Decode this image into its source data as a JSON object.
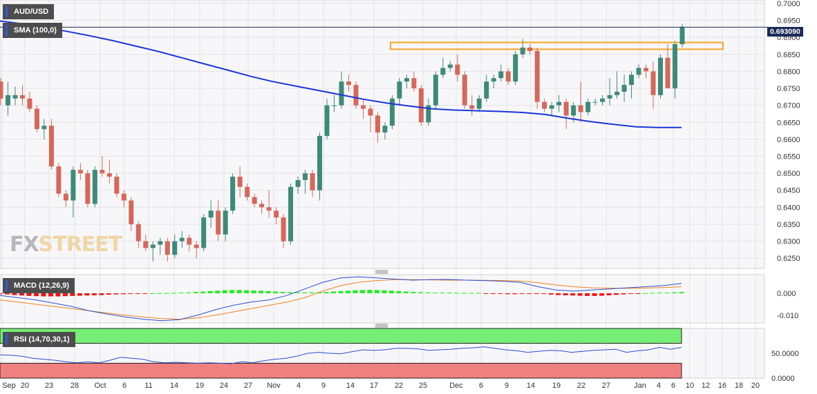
{
  "labels": {
    "symbol": "AUD/USD",
    "sma": "SMA (100,0)",
    "macd": "MACD (12,26,9)",
    "rsi": "RSI (14,70,30,1)",
    "price_tag": "0.693090",
    "watermark_fx": "FX",
    "watermark_street": "STREET"
  },
  "colors": {
    "bull": "#3d8a7a",
    "bear": "#d6675a",
    "sma": "#1a35d6",
    "macd_line": "#2d4ed1",
    "signal_line": "#f0801a",
    "hist_pos": "#22ee22",
    "hist_neg": "#ee1111",
    "rsi_line": "#2b4bd3",
    "rsi_overbought": "#77ee77",
    "rsi_oversold": "#f08080",
    "resistance_zone": "#f5a623",
    "price_line": "#1c2a57"
  },
  "chart_data": {
    "type": "candlestick",
    "price_axis": {
      "ticks": [
        "0.7000",
        "0.6950",
        "0.6900",
        "0.6850",
        "0.6800",
        "0.6750",
        "0.6700",
        "0.6650",
        "0.6600",
        "0.6550",
        "0.6500",
        "0.6450",
        "0.6400",
        "0.6350",
        "0.6300",
        "0.6250"
      ],
      "range": [
        0.622,
        0.701
      ]
    },
    "x_tick_labels": [
      "Sep",
      "20",
      "23",
      "28",
      "Oct",
      "6",
      "11",
      "14",
      "19",
      "24",
      "27",
      "Nov",
      "4",
      "9",
      "14",
      "17",
      "22",
      "25",
      "Dec",
      "6",
      "9",
      "14",
      "19",
      "22",
      "27",
      "Jan",
      "4",
      "6",
      "10",
      "12",
      "16",
      "18",
      "20"
    ],
    "ohlc": [
      [
        0.677,
        0.678,
        0.67,
        0.672
      ],
      [
        0.67,
        0.677,
        0.667,
        0.673
      ],
      [
        0.672,
        0.6755,
        0.67,
        0.673
      ],
      [
        0.673,
        0.676,
        0.67,
        0.672
      ],
      [
        0.672,
        0.674,
        0.668,
        0.669
      ],
      [
        0.669,
        0.67,
        0.662,
        0.663
      ],
      [
        0.663,
        0.666,
        0.66,
        0.664
      ],
      [
        0.664,
        0.666,
        0.651,
        0.652
      ],
      [
        0.652,
        0.653,
        0.643,
        0.644
      ],
      [
        0.644,
        0.645,
        0.64,
        0.642
      ],
      [
        0.642,
        0.652,
        0.637,
        0.651
      ],
      [
        0.651,
        0.653,
        0.648,
        0.65
      ],
      [
        0.65,
        0.651,
        0.64,
        0.641
      ],
      [
        0.641,
        0.652,
        0.64,
        0.651
      ],
      [
        0.651,
        0.655,
        0.649,
        0.65
      ],
      [
        0.65,
        0.654,
        0.647,
        0.649
      ],
      [
        0.649,
        0.65,
        0.643,
        0.644
      ],
      [
        0.644,
        0.645,
        0.64,
        0.642
      ],
      [
        0.642,
        0.643,
        0.633,
        0.635
      ],
      [
        0.635,
        0.636,
        0.628,
        0.63
      ],
      [
        0.63,
        0.632,
        0.627,
        0.628
      ],
      [
        0.628,
        0.63,
        0.624,
        0.629
      ],
      [
        0.629,
        0.631,
        0.626,
        0.63
      ],
      [
        0.63,
        0.631,
        0.624,
        0.626
      ],
      [
        0.626,
        0.632,
        0.625,
        0.63
      ],
      [
        0.63,
        0.633,
        0.628,
        0.631
      ],
      [
        0.631,
        0.632,
        0.627,
        0.629
      ],
      [
        0.629,
        0.63,
        0.625,
        0.628
      ],
      [
        0.628,
        0.638,
        0.627,
        0.637
      ],
      [
        0.637,
        0.642,
        0.634,
        0.639
      ],
      [
        0.639,
        0.642,
        0.63,
        0.632
      ],
      [
        0.632,
        0.64,
        0.63,
        0.639
      ],
      [
        0.639,
        0.65,
        0.638,
        0.649
      ],
      [
        0.649,
        0.652,
        0.643,
        0.646
      ],
      [
        0.646,
        0.647,
        0.642,
        0.643
      ],
      [
        0.643,
        0.644,
        0.64,
        0.641
      ],
      [
        0.641,
        0.642,
        0.638,
        0.64
      ],
      [
        0.64,
        0.645,
        0.637,
        0.639
      ],
      [
        0.639,
        0.64,
        0.635,
        0.637
      ],
      [
        0.637,
        0.638,
        0.628,
        0.63
      ],
      [
        0.63,
        0.647,
        0.629,
        0.646
      ],
      [
        0.646,
        0.649,
        0.644,
        0.648
      ],
      [
        0.648,
        0.651,
        0.644,
        0.65
      ],
      [
        0.65,
        0.651,
        0.643,
        0.645
      ],
      [
        0.645,
        0.662,
        0.642,
        0.661
      ],
      [
        0.661,
        0.672,
        0.66,
        0.67
      ],
      [
        0.67,
        0.673,
        0.668,
        0.67
      ],
      [
        0.67,
        0.68,
        0.669,
        0.677
      ],
      [
        0.677,
        0.679,
        0.674,
        0.676
      ],
      [
        0.676,
        0.677,
        0.669,
        0.67
      ],
      [
        0.67,
        0.672,
        0.666,
        0.669
      ],
      [
        0.669,
        0.67,
        0.662,
        0.667
      ],
      [
        0.667,
        0.668,
        0.659,
        0.662
      ],
      [
        0.662,
        0.665,
        0.66,
        0.664
      ],
      [
        0.664,
        0.673,
        0.663,
        0.672
      ],
      [
        0.672,
        0.678,
        0.67,
        0.677
      ],
      [
        0.677,
        0.679,
        0.675,
        0.678
      ],
      [
        0.678,
        0.68,
        0.674,
        0.675
      ],
      [
        0.675,
        0.676,
        0.664,
        0.665
      ],
      [
        0.665,
        0.672,
        0.664,
        0.67
      ],
      [
        0.67,
        0.68,
        0.669,
        0.679
      ],
      [
        0.679,
        0.684,
        0.678,
        0.681
      ],
      [
        0.681,
        0.683,
        0.68,
        0.682
      ],
      [
        0.682,
        0.685,
        0.677,
        0.679
      ],
      [
        0.679,
        0.68,
        0.669,
        0.67
      ],
      [
        0.67,
        0.673,
        0.667,
        0.669
      ],
      [
        0.669,
        0.673,
        0.668,
        0.672
      ],
      [
        0.672,
        0.679,
        0.671,
        0.677
      ],
      [
        0.677,
        0.679,
        0.675,
        0.678
      ],
      [
        0.678,
        0.682,
        0.677,
        0.68
      ],
      [
        0.68,
        0.681,
        0.676,
        0.677
      ],
      [
        0.677,
        0.686,
        0.676,
        0.685
      ],
      [
        0.685,
        0.6895,
        0.684,
        0.687
      ],
      [
        0.687,
        0.688,
        0.685,
        0.686
      ],
      [
        0.686,
        0.687,
        0.669,
        0.671
      ],
      [
        0.671,
        0.672,
        0.668,
        0.669
      ],
      [
        0.669,
        0.671,
        0.667,
        0.67
      ],
      [
        0.67,
        0.673,
        0.668,
        0.671
      ],
      [
        0.671,
        0.672,
        0.663,
        0.667
      ],
      [
        0.667,
        0.671,
        0.665,
        0.67
      ],
      [
        0.67,
        0.677,
        0.665,
        0.668
      ],
      [
        0.668,
        0.672,
        0.667,
        0.671
      ],
      [
        0.671,
        0.672,
        0.67,
        0.671
      ],
      [
        0.671,
        0.673,
        0.67,
        0.672
      ],
      [
        0.672,
        0.678,
        0.67,
        0.673
      ],
      [
        0.673,
        0.68,
        0.672,
        0.674
      ],
      [
        0.674,
        0.679,
        0.671,
        0.676
      ],
      [
        0.676,
        0.68,
        0.672,
        0.679
      ],
      [
        0.679,
        0.682,
        0.678,
        0.681
      ],
      [
        0.681,
        0.682,
        0.678,
        0.68
      ],
      [
        0.68,
        0.683,
        0.669,
        0.673
      ],
      [
        0.673,
        0.685,
        0.672,
        0.684
      ],
      [
        0.684,
        0.688,
        0.675,
        0.675
      ],
      [
        0.675,
        0.689,
        0.672,
        0.688
      ],
      [
        0.688,
        0.694,
        0.687,
        0.693
      ]
    ],
    "sma_100": [
      0.6948,
      0.694,
      0.6929,
      0.6917,
      0.6904,
      0.689,
      0.6874,
      0.6858,
      0.684,
      0.6822,
      0.6804,
      0.6786,
      0.677,
      0.6757,
      0.6744,
      0.6731,
      0.6718,
      0.6707,
      0.6698,
      0.669,
      0.6686,
      0.6684,
      0.6682,
      0.6679,
      0.6673,
      0.6662,
      0.6652,
      0.6644,
      0.6637,
      0.6635,
      0.6635
    ],
    "resistance_zone": [
      0.6865,
      0.6885
    ],
    "macd_axis": {
      "ticks": [
        "0.000",
        "-0.010"
      ],
      "range": [
        -0.0135,
        0.0085
      ]
    },
    "macd_line": [
      -0.001,
      -0.002,
      -0.003,
      -0.0045,
      -0.006,
      -0.008,
      -0.0095,
      -0.0108,
      -0.0118,
      -0.0125,
      -0.012,
      -0.01,
      -0.0075,
      -0.0055,
      -0.004,
      -0.003,
      -0.001,
      0.002,
      0.005,
      0.007,
      0.0075,
      0.007,
      0.0065,
      0.006,
      0.0062,
      0.0063,
      0.006,
      0.0058,
      0.0055,
      0.005,
      0.003,
      0.0015,
      0.001,
      0.0015,
      0.002,
      0.0025,
      0.003,
      0.0035,
      0.0045
    ],
    "signal_line": [
      -0.003,
      -0.004,
      -0.005,
      -0.006,
      -0.007,
      -0.008,
      -0.009,
      -0.01,
      -0.0108,
      -0.0115,
      -0.0118,
      -0.0112,
      -0.01,
      -0.0085,
      -0.007,
      -0.0055,
      -0.004,
      -0.002,
      0.001,
      0.0035,
      0.005,
      0.0058,
      0.0062,
      0.0062,
      0.0061,
      0.006,
      0.006,
      0.0059,
      0.0058,
      0.0056,
      0.0048,
      0.0038,
      0.003,
      0.0025,
      0.0023,
      0.0023,
      0.0024,
      0.0026,
      0.003
    ],
    "macd_hist": [
      -0.0004,
      -0.0005,
      -0.0008,
      -0.001,
      -0.0012,
      -0.0013,
      -0.0014,
      -0.0014,
      -0.0014,
      -0.0013,
      -0.0012,
      -0.0011,
      -0.001,
      -0.0009,
      -0.0008,
      -0.0006,
      -0.0005,
      -0.0004,
      -0.0003,
      -0.0002,
      -0.0001,
      0.0,
      0.0001,
      0.0001,
      0.0002,
      0.0003,
      0.0004,
      0.0006,
      0.0008,
      0.001,
      0.0012,
      0.0014,
      0.0015,
      0.0015,
      0.0014,
      0.0013,
      0.0012,
      0.001,
      0.0008,
      0.0006,
      0.0005,
      0.0004,
      0.0004,
      0.0004,
      0.0005,
      0.0006,
      0.0008,
      0.001,
      0.0012,
      0.0014,
      0.0015,
      0.0016,
      0.0015,
      0.0014,
      0.0012,
      0.001,
      0.0008,
      0.0006,
      0.0005,
      0.0004,
      0.0003,
      0.0003,
      0.0003,
      0.0002,
      0.0002,
      0.0002,
      0.0002,
      -0.0001,
      -0.0002,
      -0.0003,
      -0.0004,
      -0.0004,
      -0.0003,
      -0.0003,
      -0.0003,
      -0.0002,
      -0.0006,
      -0.0008,
      -0.0009,
      -0.001,
      -0.0011,
      -0.0012,
      -0.0012,
      -0.0011,
      -0.0009,
      -0.0007,
      -0.0005,
      -0.0003,
      -0.0001,
      0.0001,
      0.0002,
      0.0003,
      0.0003,
      0.0004,
      0.0006
    ],
    "rsi_axis": {
      "ticks": [
        "50.0000",
        "0.0000"
      ],
      "range": [
        0,
        100
      ]
    },
    "rsi_levels": [
      70,
      30
    ],
    "rsi": [
      47,
      46,
      44,
      40,
      38,
      36,
      33,
      31,
      33,
      31,
      36,
      42,
      40,
      38,
      33,
      31,
      32,
      31,
      30,
      31,
      30,
      29,
      33,
      31,
      35,
      38,
      40,
      44,
      50,
      52,
      50,
      49,
      53,
      57,
      56,
      57,
      60,
      60,
      59,
      56,
      57,
      58,
      60,
      61,
      63,
      60,
      57,
      55,
      52,
      54,
      56,
      55,
      52,
      54,
      56,
      57,
      58,
      52,
      55,
      57,
      62,
      58,
      62
    ]
  }
}
